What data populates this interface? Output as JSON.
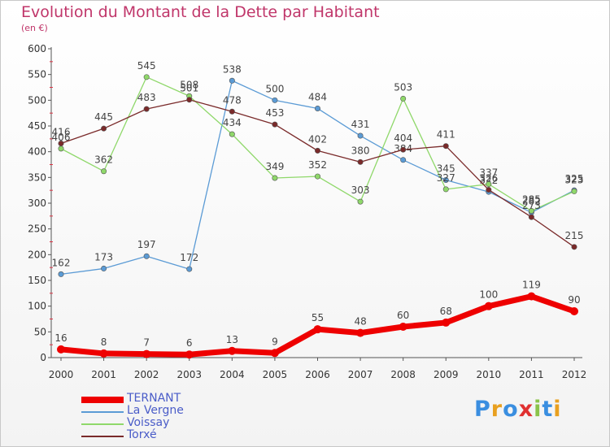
{
  "title": "Evolution du Montant de la Dette par Habitant",
  "subtitle": "(en €)",
  "logo": {
    "text": "Proxiti",
    "letter_colors": [
      "#3a8ee0",
      "#e8a020",
      "#3a8ee0",
      "#e03030",
      "#8bc34a",
      "#3a8ee0",
      "#e8a020"
    ]
  },
  "chart_data": {
    "type": "line",
    "title": "Evolution du Montant de la Dette par Habitant",
    "subtitle": "(en €)",
    "x": [
      "2000",
      "2001",
      "2002",
      "2003",
      "2004",
      "2005",
      "2006",
      "2007",
      "2008",
      "2009",
      "2010",
      "2011",
      "2012"
    ],
    "ylim": [
      0,
      600
    ],
    "yticks": [
      0,
      50,
      100,
      150,
      200,
      250,
      300,
      350,
      400,
      450,
      500,
      550,
      600
    ],
    "grid": false,
    "legend_position": "bottom-left",
    "series": [
      {
        "name": "TERNANT",
        "color": "#ee0000",
        "bold": true,
        "values": [
          16,
          8,
          7,
          6,
          13,
          9,
          55,
          48,
          60,
          68,
          100,
          119,
          90
        ]
      },
      {
        "name": "La Vergne",
        "color": "#5b9bd5",
        "bold": false,
        "values": [
          162,
          173,
          197,
          172,
          538,
          500,
          484,
          431,
          384,
          345,
          322,
          282,
          325
        ]
      },
      {
        "name": "Voissay",
        "color": "#8fd86a",
        "bold": false,
        "values": [
          406,
          362,
          545,
          508,
          434,
          349,
          352,
          303,
          503,
          327,
          337,
          285,
          323
        ]
      },
      {
        "name": "Torxé",
        "color": "#7a2a2a",
        "bold": false,
        "values": [
          416,
          445,
          483,
          501,
          478,
          453,
          402,
          380,
          404,
          411,
          326,
          273,
          215
        ]
      }
    ]
  }
}
